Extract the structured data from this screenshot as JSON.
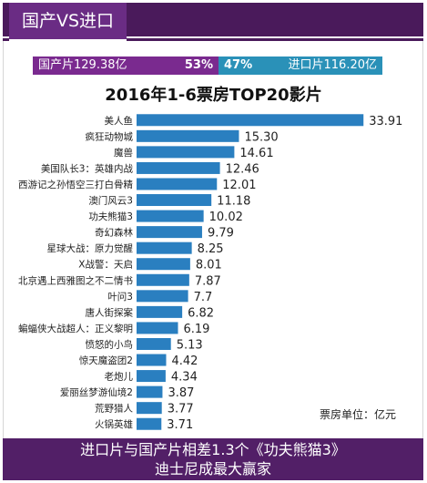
{
  "header": {
    "title": "国产VS进口"
  },
  "share": {
    "domestic_label": "国产片129.38亿",
    "domestic_pct": "53%",
    "domestic_share": 53,
    "imported_pct": "47%",
    "imported_label": "进口片116.20亿",
    "imported_share": 47,
    "colors": {
      "domestic": "#7a2a8f",
      "imported": "#2a91b8"
    }
  },
  "chart_data": {
    "type": "bar",
    "orientation": "horizontal",
    "title": "2016年1-6票房TOP20影片",
    "categories": [
      "美人鱼",
      "疯狂动物城",
      "魔兽",
      "美国队长3：英雄内战",
      "西游记之孙悟空三打白骨精",
      "澳门风云3",
      "功夫熊猫3",
      "奇幻森林",
      "星球大战：原力觉醒",
      "X战警：天启",
      "北京遇上西雅图之不二情书",
      "叶问3",
      "唐人街探案",
      "蝙蝠侠大战超人：正义黎明",
      "愤怒的小鸟",
      "惊天魔盗团2",
      "老炮儿",
      "爱丽丝梦游仙境2",
      "荒野猎人",
      "火锅英雄"
    ],
    "values": [
      33.91,
      15.3,
      14.61,
      12.46,
      12.01,
      11.18,
      10.02,
      9.79,
      8.25,
      8.01,
      7.87,
      7.7,
      6.82,
      6.19,
      5.13,
      4.42,
      4.34,
      3.87,
      3.77,
      3.71
    ],
    "value_labels": [
      "33.91",
      "15.30",
      "14.61",
      "12.46",
      "12.01",
      "11.18",
      "10.02",
      "9.79",
      "8.25",
      "8.01",
      "7.87",
      "7.7",
      "6.82",
      "6.19",
      "5.13",
      "4.42",
      "4.34",
      "3.87",
      "3.77",
      "3.71"
    ],
    "xlim": [
      0,
      34
    ],
    "grid": false,
    "legend": "none",
    "bar_color": "#2a7fc0",
    "unit_note": "票房单位：亿元"
  },
  "footer": {
    "line1": "进口片与国产片相差1.3个《功夫熊猫3》",
    "line2": "迪士尼成最大赢家"
  }
}
